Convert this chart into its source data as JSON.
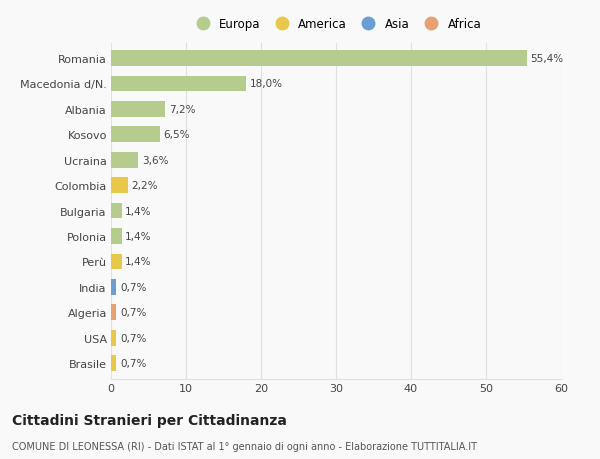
{
  "countries": [
    "Romania",
    "Macedonia d/N.",
    "Albania",
    "Kosovo",
    "Ucraina",
    "Colombia",
    "Bulgaria",
    "Polonia",
    "Perù",
    "India",
    "Algeria",
    "USA",
    "Brasile"
  ],
  "values": [
    55.4,
    18.0,
    7.2,
    6.5,
    3.6,
    2.2,
    1.4,
    1.4,
    1.4,
    0.7,
    0.7,
    0.7,
    0.7
  ],
  "labels": [
    "55,4%",
    "18,0%",
    "7,2%",
    "6,5%",
    "3,6%",
    "2,2%",
    "1,4%",
    "1,4%",
    "1,4%",
    "0,7%",
    "0,7%",
    "0,7%",
    "0,7%"
  ],
  "continents": [
    "Europa",
    "Europa",
    "Europa",
    "Europa",
    "Europa",
    "America",
    "Europa",
    "Europa",
    "America",
    "Asia",
    "Africa",
    "America",
    "America"
  ],
  "continent_colors": {
    "Europa": "#b5cc8e",
    "America": "#e8c84a",
    "Asia": "#6b9fd4",
    "Africa": "#e8a070"
  },
  "legend_order": [
    "Europa",
    "America",
    "Asia",
    "Africa"
  ],
  "title": "Cittadini Stranieri per Cittadinanza",
  "subtitle": "COMUNE DI LEONESSA (RI) - Dati ISTAT al 1° gennaio di ogni anno - Elaborazione TUTTITALIA.IT",
  "xlim": [
    0,
    60
  ],
  "xticks": [
    0,
    10,
    20,
    30,
    40,
    50,
    60
  ],
  "background_color": "#f9f9f9",
  "grid_color": "#e0e0e0",
  "label_fontsize": 7.5,
  "ytick_fontsize": 8,
  "xtick_fontsize": 8,
  "title_fontsize": 10,
  "subtitle_fontsize": 7
}
